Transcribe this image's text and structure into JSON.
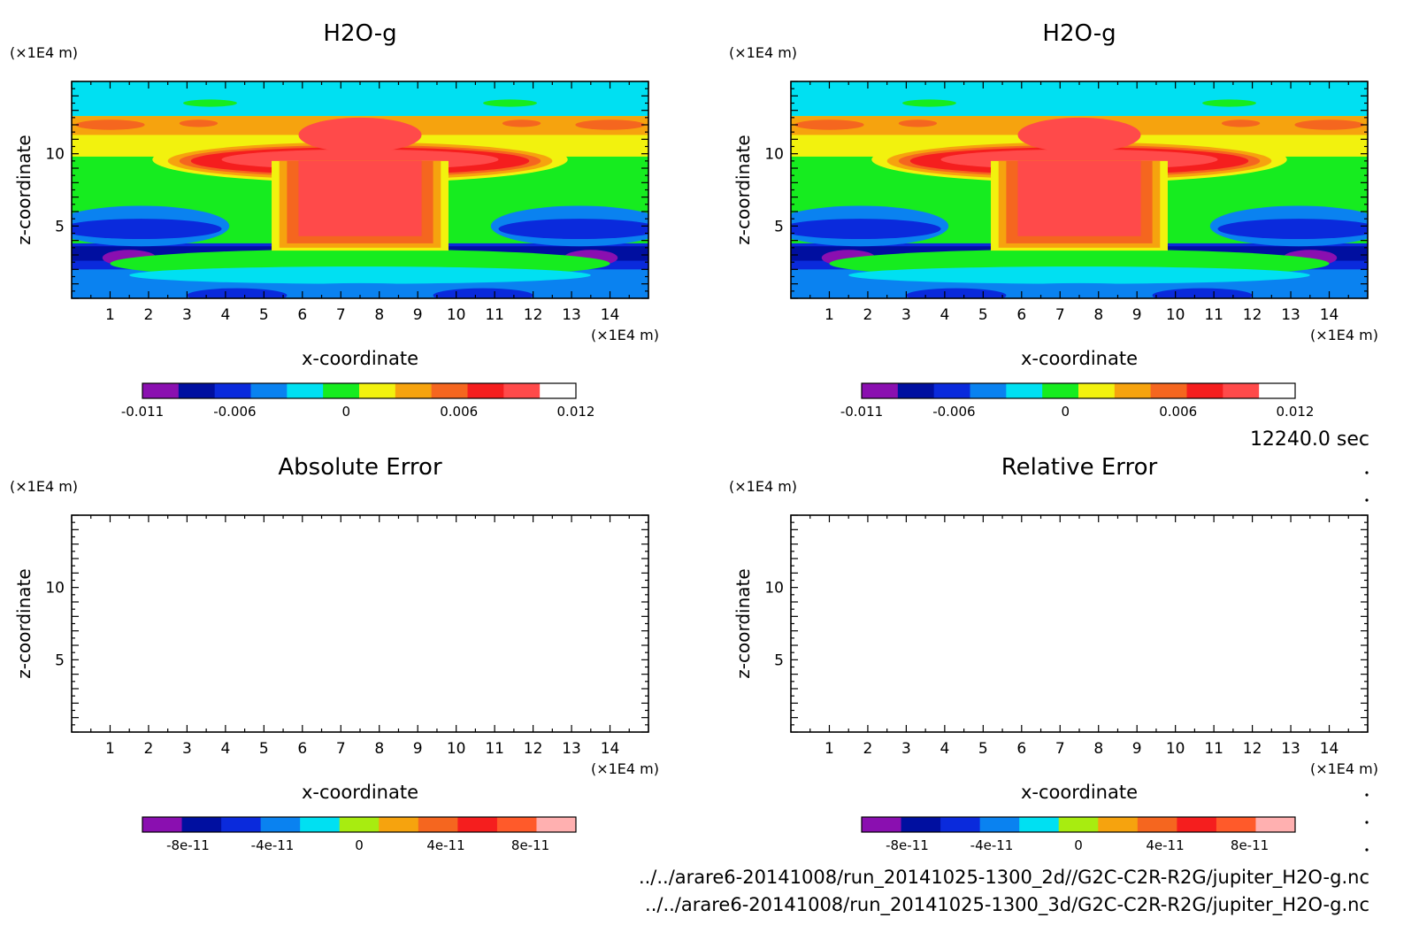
{
  "colors": {
    "bg": "#ffffff",
    "axis": "#000000",
    "filled_levels": [
      "#8a0fb0",
      "#000fa0",
      "#0a2adc",
      "#0a82f0",
      "#00e0f2",
      "#16ec1f",
      "#f2f20e",
      "#f6a30e",
      "#f5661f",
      "#f51e1e",
      "#ff4a4a",
      "#ffffff"
    ],
    "error_levels": [
      "#8a0fb0",
      "#000fa0",
      "#0a2adc",
      "#0a82f0",
      "#00e0f2",
      "#a8ec10",
      "#f6a30e",
      "#f5661f",
      "#f51e1e",
      "#ff5a2a",
      "#ffb0b0"
    ]
  },
  "time_label": "12240.0 sec",
  "files": [
    "../../arare6-20141008/run_20141025-1300_2d//G2C-C2R-R2G/jupiter_H2O-g.nc",
    "../../arare6-20141008/run_20141025-1300_3d/G2C-C2R-R2G/jupiter_H2O-g.nc"
  ],
  "chart_data": [
    {
      "type": "heatmap",
      "title": "H2O-g",
      "xlabel": "x-coordinate",
      "ylabel": "z-coordinate",
      "x_unit": "(×1E4 m)",
      "y_unit": "(×1E4 m)",
      "xlim": [
        0,
        15
      ],
      "ylim": [
        0,
        15
      ],
      "xticks": [
        "1",
        "2",
        "3",
        "4",
        "5",
        "6",
        "7",
        "8",
        "9",
        "10",
        "11",
        "12",
        "13",
        "14"
      ],
      "yticks": [
        "5",
        "10"
      ],
      "colorbar": [
        "-0.011",
        "-0.006",
        "0",
        "0.006",
        "0.012"
      ],
      "field": "filled"
    },
    {
      "type": "heatmap",
      "title": "H2O-g",
      "xlabel": "x-coordinate",
      "ylabel": "z-coordinate",
      "x_unit": "(×1E4 m)",
      "y_unit": "(×1E4 m)",
      "xlim": [
        0,
        15
      ],
      "ylim": [
        0,
        15
      ],
      "xticks": [
        "1",
        "2",
        "3",
        "4",
        "5",
        "6",
        "7",
        "8",
        "9",
        "10",
        "11",
        "12",
        "13",
        "14"
      ],
      "yticks": [
        "5",
        "10"
      ],
      "colorbar": [
        "-0.011",
        "-0.006",
        "0",
        "0.006",
        "0.012"
      ],
      "field": "filled"
    },
    {
      "type": "heatmap",
      "title": "Absolute Error",
      "xlabel": "x-coordinate",
      "ylabel": "z-coordinate",
      "x_unit": "(×1E4 m)",
      "y_unit": "(×1E4 m)",
      "xlim": [
        0,
        15
      ],
      "ylim": [
        0,
        15
      ],
      "xticks": [
        "1",
        "2",
        "3",
        "4",
        "5",
        "6",
        "7",
        "8",
        "9",
        "10",
        "11",
        "12",
        "13",
        "14"
      ],
      "yticks": [
        "5",
        "10"
      ],
      "colorbar": [
        "-8e-11",
        "-4e-11",
        "0",
        "4e-11",
        "8e-11"
      ],
      "field": "empty"
    },
    {
      "type": "heatmap",
      "title": "Relative Error",
      "xlabel": "x-coordinate",
      "ylabel": "z-coordinate",
      "x_unit": "(×1E4 m)",
      "y_unit": "(×1E4 m)",
      "xlim": [
        0,
        15
      ],
      "ylim": [
        0,
        15
      ],
      "xticks": [
        "1",
        "2",
        "3",
        "4",
        "5",
        "6",
        "7",
        "8",
        "9",
        "10",
        "11",
        "12",
        "13",
        "14"
      ],
      "yticks": [
        "5",
        "10"
      ],
      "colorbar": [
        "-8e-11",
        "-4e-11",
        "0",
        "4e-11",
        "8e-11"
      ],
      "field": "empty"
    }
  ]
}
